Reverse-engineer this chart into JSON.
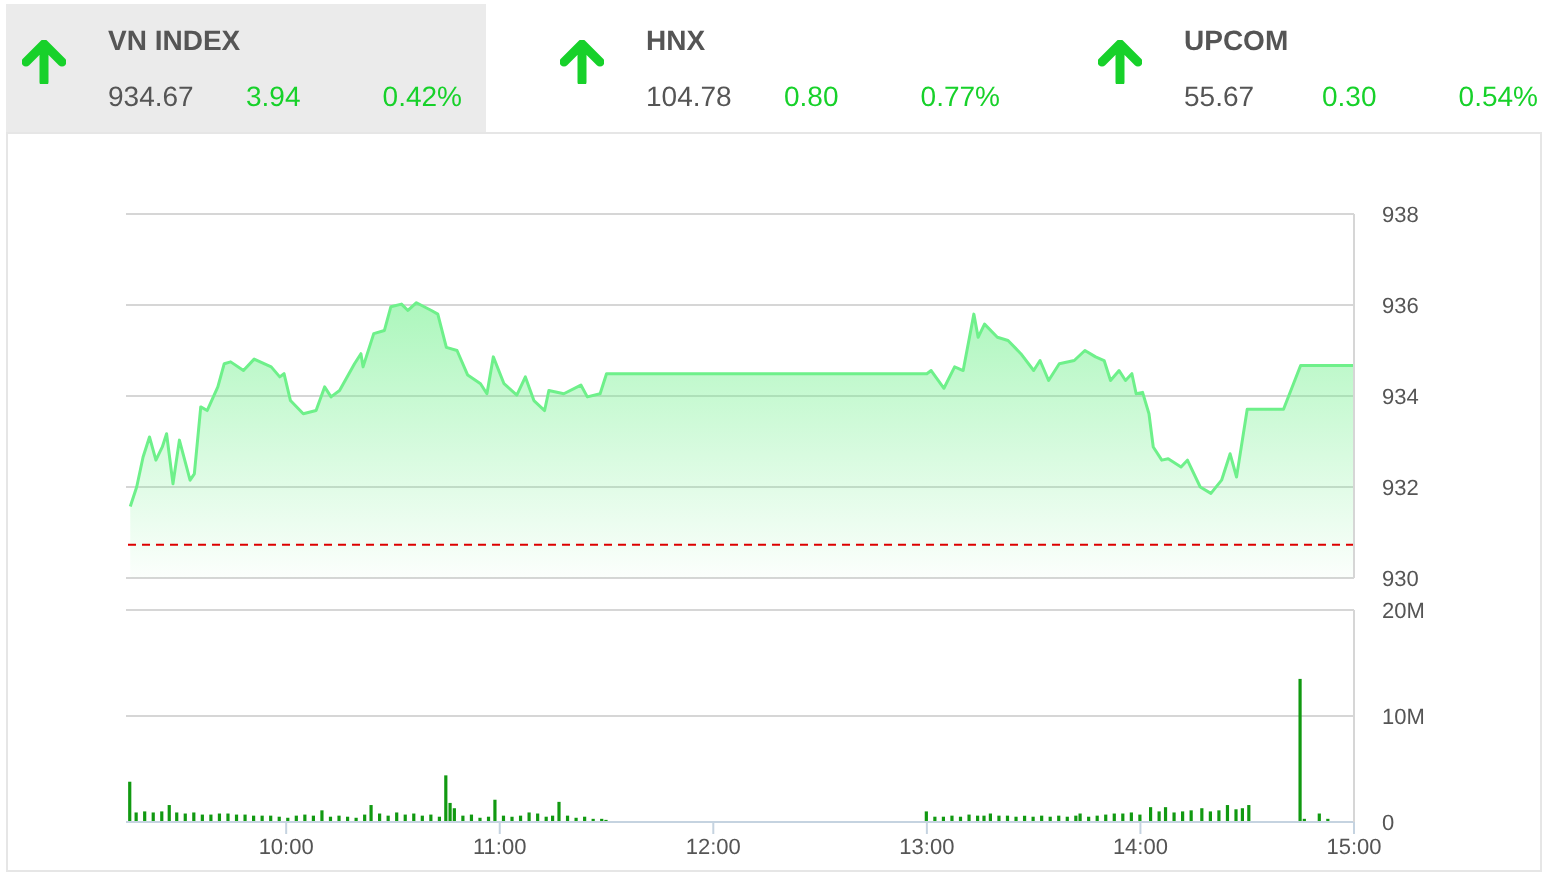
{
  "chart_data": [
    {
      "type": "other",
      "annotations": [
        "VN INDEX",
        "934.67",
        "3.94",
        "0.42%",
        "HNX",
        "104.78",
        "0.80",
        "0.77%",
        "UPCOM",
        "55.67",
        "0.30",
        "0.54%"
      ]
    },
    {
      "type": "area",
      "xlim": [
        9.25,
        15
      ],
      "ylim": [
        930,
        938
      ],
      "yticks": [
        930,
        932,
        934,
        936,
        938
      ],
      "grid": "y",
      "tick_labels": "y",
      "ref_lines": [
        {
          "axis": "y",
          "value": 930.73,
          "color": "#dd0000",
          "line_style": "dashed"
        }
      ],
      "series": [
        {
          "color": "#6ef08a",
          "x": [
            9.27,
            9.3,
            9.33,
            9.36,
            9.39,
            9.42,
            9.44,
            9.47,
            9.5,
            9.55,
            9.57,
            9.6,
            9.63,
            9.68,
            9.71,
            9.74,
            9.8,
            9.85,
            9.93,
            9.97,
            9.99,
            10.02,
            10.08,
            10.14,
            10.18,
            10.21,
            10.25,
            10.32,
            10.35,
            10.36,
            10.41,
            10.46,
            10.49,
            10.54,
            10.57,
            10.61,
            10.68,
            10.71,
            10.75,
            10.8,
            10.85,
            10.91,
            10.94,
            10.97,
            11.02,
            11.08,
            11.12,
            11.16,
            11.21,
            11.23,
            11.3,
            11.38,
            11.41,
            11.47,
            11.5,
            13.0,
            13.02,
            13.08,
            13.13,
            13.17,
            13.22,
            13.24,
            13.27,
            13.33,
            13.38,
            13.44,
            13.5,
            13.53,
            13.57,
            13.62,
            13.69,
            13.74,
            13.79,
            13.83,
            13.86,
            13.9,
            13.93,
            13.96,
            13.98,
            14.01,
            14.04,
            14.06,
            14.1,
            14.13,
            14.19,
            14.22,
            14.28,
            14.33,
            14.38,
            14.42,
            14.45,
            14.5,
            14.67,
            14.75,
            15.0
          ],
          "values": [
            931.57,
            932.0,
            932.66,
            933.1,
            932.59,
            932.88,
            933.17,
            932.07,
            933.03,
            932.15,
            932.29,
            933.76,
            933.68,
            934.2,
            934.71,
            934.75,
            934.56,
            934.81,
            934.64,
            934.42,
            934.49,
            933.9,
            933.61,
            933.68,
            934.2,
            933.98,
            934.12,
            934.71,
            934.93,
            934.64,
            935.37,
            935.44,
            935.96,
            936.02,
            935.88,
            936.05,
            935.88,
            935.8,
            935.07,
            935.0,
            934.46,
            934.27,
            934.05,
            934.86,
            934.27,
            934.02,
            934.42,
            933.9,
            933.68,
            934.12,
            934.05,
            934.24,
            933.98,
            934.05,
            934.49,
            934.49,
            934.56,
            934.17,
            934.64,
            934.56,
            935.8,
            935.29,
            935.58,
            935.29,
            935.22,
            934.93,
            934.56,
            934.78,
            934.34,
            934.71,
            934.78,
            935.0,
            934.86,
            934.78,
            934.34,
            934.56,
            934.34,
            934.49,
            934.05,
            934.08,
            933.61,
            932.88,
            932.59,
            932.62,
            932.44,
            932.59,
            932.0,
            931.86,
            932.15,
            932.73,
            932.22,
            933.71,
            933.71,
            934.67,
            934.67
          ]
        }
      ]
    },
    {
      "type": "bar",
      "xlim": [
        9.25,
        15
      ],
      "xticks": [
        {
          "value": 10,
          "label": "10:00"
        },
        {
          "value": 11,
          "label": "11:00"
        },
        {
          "value": 12,
          "label": "12:00"
        },
        {
          "value": 13,
          "label": "13:00"
        },
        {
          "value": 14,
          "label": "14:00"
        },
        {
          "value": 15,
          "label": "15:00"
        }
      ],
      "ylim": [
        0,
        20
      ],
      "yticks": [
        0,
        {
          "value": 10,
          "label": "10M"
        },
        {
          "value": 20,
          "label": "20M"
        }
      ],
      "grid": "y",
      "series": [
        {
          "color": "#119911",
          "x": [
            9.27,
            9.3,
            9.34,
            9.38,
            9.42,
            9.455,
            9.49,
            9.53,
            9.57,
            9.61,
            9.65,
            9.69,
            9.73,
            9.77,
            9.81,
            9.85,
            9.89,
            9.93,
            9.97,
            10.01,
            10.05,
            10.09,
            10.13,
            10.17,
            10.21,
            10.25,
            10.29,
            10.33,
            10.37,
            10.4,
            10.44,
            10.48,
            10.52,
            10.56,
            10.6,
            10.64,
            10.68,
            10.72,
            10.75,
            10.77,
            10.79,
            10.83,
            10.87,
            10.91,
            10.95,
            10.98,
            11.02,
            11.06,
            11.1,
            11.14,
            11.18,
            11.22,
            11.25,
            11.28,
            11.32,
            11.36,
            11.4,
            11.44,
            11.48,
            11.5,
            13.0,
            13.04,
            13.08,
            13.12,
            13.16,
            13.2,
            13.24,
            13.27,
            13.3,
            13.34,
            13.38,
            13.42,
            13.46,
            13.5,
            13.54,
            13.58,
            13.62,
            13.66,
            13.7,
            13.72,
            13.76,
            13.8,
            13.84,
            13.88,
            13.92,
            13.96,
            14.0,
            14.05,
            14.09,
            14.12,
            14.16,
            14.2,
            14.24,
            14.29,
            14.33,
            14.37,
            14.41,
            14.45,
            14.48,
            14.51,
            14.75,
            14.77,
            14.84,
            14.88
          ],
          "values": [
            3.8,
            0.9,
            1.0,
            0.9,
            1.0,
            1.6,
            0.9,
            0.8,
            0.9,
            0.7,
            0.7,
            0.8,
            0.8,
            0.7,
            0.7,
            0.6,
            0.6,
            0.6,
            0.5,
            0.4,
            0.6,
            0.7,
            0.6,
            1.1,
            0.5,
            0.6,
            0.5,
            0.4,
            0.7,
            1.6,
            0.8,
            0.6,
            0.9,
            0.7,
            0.8,
            0.6,
            0.7,
            0.5,
            4.4,
            1.8,
            1.3,
            0.6,
            0.7,
            0.4,
            0.5,
            2.1,
            0.6,
            0.5,
            0.6,
            0.9,
            0.8,
            0.5,
            0.6,
            1.9,
            0.6,
            0.4,
            0.5,
            0.3,
            0.3,
            0.2,
            1.0,
            0.5,
            0.5,
            0.6,
            0.5,
            0.7,
            0.6,
            0.6,
            0.8,
            0.6,
            0.6,
            0.5,
            0.6,
            0.5,
            0.6,
            0.5,
            0.6,
            0.5,
            0.6,
            0.8,
            0.5,
            0.6,
            0.7,
            0.8,
            0.8,
            0.9,
            0.7,
            1.4,
            1.0,
            1.4,
            0.9,
            1.0,
            1.1,
            1.3,
            1.0,
            1.1,
            1.6,
            1.2,
            1.3,
            1.6,
            13.5,
            0.3,
            0.8,
            0.3
          ]
        }
      ]
    }
  ]
}
